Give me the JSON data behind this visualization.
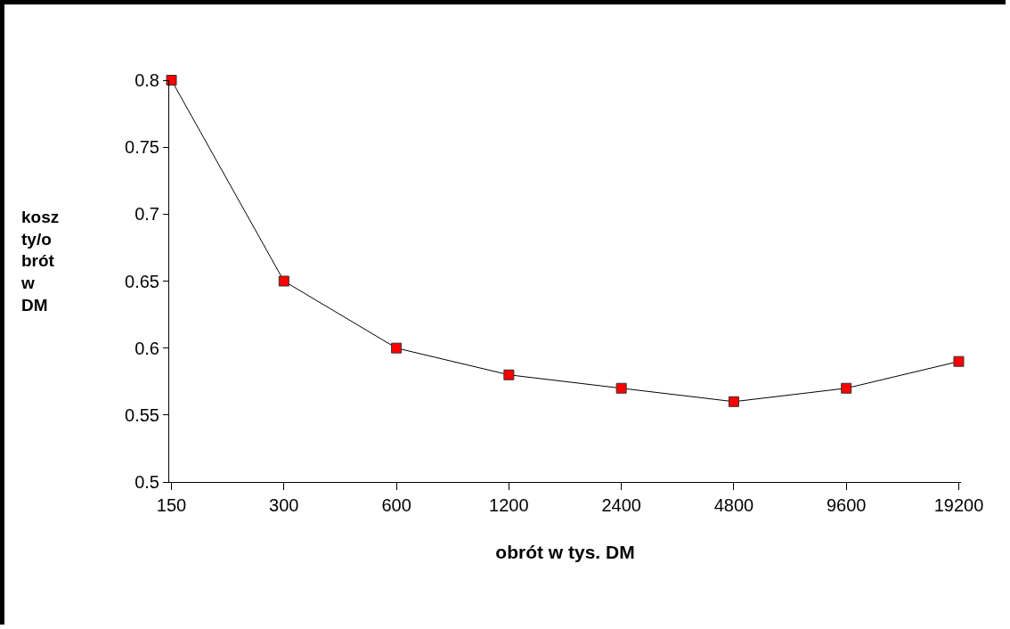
{
  "chart_data": {
    "type": "line",
    "xlabel": "obrót w tys. DM",
    "ylabel": "koszty/obrót w DM",
    "categories": [
      "150",
      "300",
      "600",
      "1200",
      "2400",
      "4800",
      "9600",
      "19200"
    ],
    "series": [
      {
        "color": "#ff0000",
        "values": [
          0.8,
          0.65,
          0.6,
          0.58,
          0.57,
          0.56,
          0.57,
          0.59
        ]
      }
    ],
    "ylim": [
      0.5,
      0.8
    ],
    "yticks": [
      0.5,
      0.55,
      0.6,
      0.65,
      0.7,
      0.75,
      0.8
    ],
    "grid": false,
    "marker": "square",
    "line_style": "solid"
  }
}
